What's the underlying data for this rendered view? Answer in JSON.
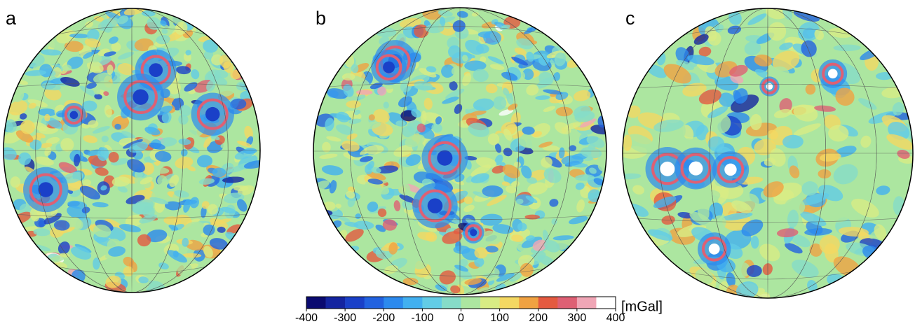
{
  "panels": [
    {
      "label": "a"
    },
    {
      "label": "b"
    },
    {
      "label": "c"
    }
  ],
  "colorbar": {
    "lim": [
      -400,
      400
    ],
    "ticks": [
      -400,
      -300,
      -200,
      -100,
      0,
      100,
      200,
      300,
      400
    ],
    "unit": "[mGal]",
    "colors": [
      "#0a0a70",
      "#1424a0",
      "#1a40c8",
      "#2262e0",
      "#2c8aee",
      "#42b0f0",
      "#62cce6",
      "#86dcc8",
      "#acE6a0",
      "#d8ec84",
      "#f4d862",
      "#f0a242",
      "#e45a40",
      "#de6074",
      "#f0a6b6",
      "#ffffff"
    ]
  }
}
